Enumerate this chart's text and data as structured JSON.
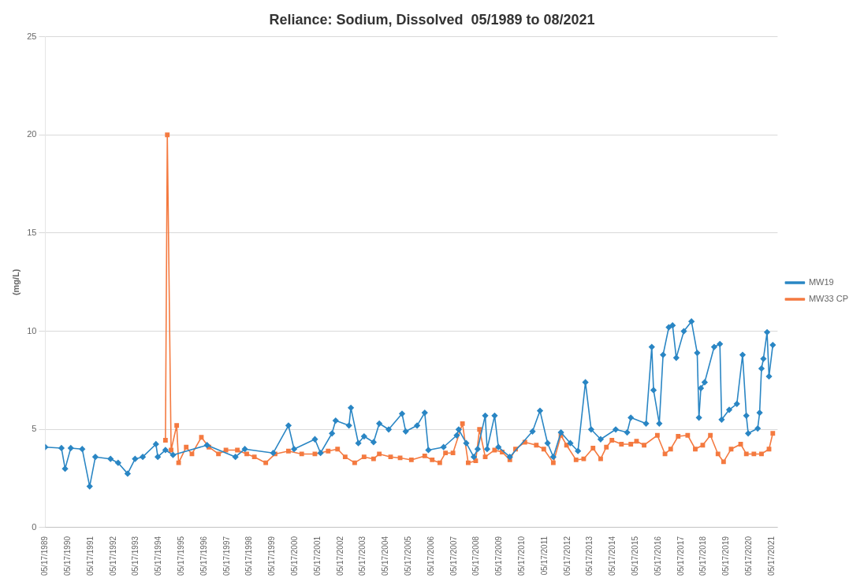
{
  "chart_data": {
    "type": "line",
    "title": "Reliance: Sodium, Dissolved  05/1989 to 08/2021",
    "ylabel": "(mg/L)",
    "xlim": [
      "1989-05-17",
      "2021-08-17"
    ],
    "ylim": [
      0,
      25
    ],
    "yticks": [
      0,
      5,
      10,
      15,
      20,
      25
    ],
    "xticks": [
      {
        "value": "1989-05-17",
        "label": "05/17/1989"
      },
      {
        "value": "1990-05-17",
        "label": "05/17/1990"
      },
      {
        "value": "1991-05-17",
        "label": "05/17/1991"
      },
      {
        "value": "1992-05-17",
        "label": "05/17/1992"
      },
      {
        "value": "1993-05-17",
        "label": "05/17/1993"
      },
      {
        "value": "1994-05-17",
        "label": "05/17/1994"
      },
      {
        "value": "1995-05-17",
        "label": "05/17/1995"
      },
      {
        "value": "1996-05-17",
        "label": "05/17/1996"
      },
      {
        "value": "1997-05-17",
        "label": "05/17/1997"
      },
      {
        "value": "1998-05-17",
        "label": "05/17/1998"
      },
      {
        "value": "1999-05-17",
        "label": "05/17/1999"
      },
      {
        "value": "2000-05-17",
        "label": "05/17/2000"
      },
      {
        "value": "2001-05-17",
        "label": "05/17/2001"
      },
      {
        "value": "2002-05-17",
        "label": "05/17/2002"
      },
      {
        "value": "2003-05-17",
        "label": "05/17/2003"
      },
      {
        "value": "2004-05-17",
        "label": "05/17/2004"
      },
      {
        "value": "2005-05-17",
        "label": "05/17/2005"
      },
      {
        "value": "2006-05-17",
        "label": "05/17/2006"
      },
      {
        "value": "2007-05-17",
        "label": "05/17/2007"
      },
      {
        "value": "2008-05-17",
        "label": "05/17/2008"
      },
      {
        "value": "2009-05-17",
        "label": "05/17/2009"
      },
      {
        "value": "2010-05-17",
        "label": "05/17/2010"
      },
      {
        "value": "2011-05-17",
        "label": "05/17/2011"
      },
      {
        "value": "2012-05-17",
        "label": "05/17/2012"
      },
      {
        "value": "2013-05-17",
        "label": "05/17/2013"
      },
      {
        "value": "2014-05-17",
        "label": "05/17/2014"
      },
      {
        "value": "2015-05-17",
        "label": "05/17/2015"
      },
      {
        "value": "2016-05-17",
        "label": "05/17/2016"
      },
      {
        "value": "2017-05-17",
        "label": "05/17/2017"
      },
      {
        "value": "2018-05-17",
        "label": "05/17/2018"
      },
      {
        "value": "2019-05-17",
        "label": "05/17/2019"
      },
      {
        "value": "2020-05-17",
        "label": "05/17/2020"
      },
      {
        "value": "2021-05-17",
        "label": "05/17/2021"
      }
    ],
    "grid": "y",
    "legend": "right",
    "line_style": "solid",
    "series": [
      {
        "name": "MW19",
        "color": "#2a86c4",
        "marker": "diamond",
        "x": [
          "1989-05-17",
          "1990-02",
          "1990-04",
          "1990-07",
          "1991-01",
          "1991-05",
          "1991-08",
          "1992-04",
          "1992-08",
          "1993-01",
          "1993-05",
          "1993-09",
          "1994-04",
          "1994-05",
          "1994-09",
          "1995-01",
          "1996-07",
          "1997-10",
          "1998-03",
          "1999-06",
          "2000-02",
          "2000-05",
          "2001-04",
          "2001-07",
          "2002-01",
          "2002-03",
          "2002-10",
          "2002-11",
          "2003-03",
          "2003-06",
          "2003-11",
          "2004-02",
          "2004-07",
          "2005-02",
          "2005-04",
          "2005-10",
          "2006-02",
          "2006-04",
          "2006-12",
          "2007-07",
          "2007-08",
          "2007-12",
          "2008-04",
          "2008-06",
          "2008-10",
          "2008-11",
          "2009-03",
          "2009-05",
          "2009-11",
          "2010-11",
          "2011-03",
          "2011-07",
          "2011-10",
          "2012-02",
          "2012-07",
          "2012-11",
          "2013-03",
          "2013-06",
          "2013-11",
          "2014-07",
          "2015-01",
          "2015-03",
          "2015-11",
          "2016-02",
          "2016-03",
          "2016-06",
          "2016-08",
          "2016-11",
          "2017-01",
          "2017-03",
          "2017-07",
          "2017-11",
          "2018-02",
          "2018-03",
          "2018-04",
          "2018-06",
          "2018-11",
          "2019-02",
          "2019-03",
          "2019-07",
          "2019-11",
          "2020-02",
          "2020-04",
          "2020-05",
          "2020-10",
          "2020-11",
          "2020-12",
          "2021-01",
          "2021-03",
          "2021-04",
          "2021-06"
        ],
        "values": [
          4.1,
          4.05,
          3.0,
          4.05,
          4.0,
          2.1,
          3.6,
          3.5,
          3.3,
          2.75,
          3.5,
          3.6,
          4.25,
          3.6,
          3.95,
          3.7,
          4.2,
          3.6,
          4.0,
          3.8,
          5.2,
          4.0,
          4.5,
          3.8,
          4.8,
          5.45,
          5.2,
          6.1,
          4.3,
          4.65,
          4.35,
          5.3,
          5.0,
          5.8,
          4.9,
          5.2,
          5.85,
          3.95,
          4.1,
          4.7,
          5.0,
          4.3,
          3.6,
          4.0,
          5.7,
          4.0,
          5.7,
          4.1,
          3.6,
          4.9,
          5.95,
          4.3,
          3.6,
          4.85,
          4.3,
          3.9,
          7.4,
          5.0,
          4.5,
          5.0,
          4.85,
          5.6,
          5.3,
          9.2,
          7.0,
          5.3,
          8.8,
          10.2,
          10.3,
          8.65,
          10.0,
          10.5,
          8.9,
          5.6,
          7.1,
          7.4,
          9.2,
          9.35,
          5.5,
          6.0,
          6.3,
          8.8,
          5.7,
          4.8,
          5.05,
          5.85,
          8.1,
          8.6,
          9.95,
          7.7,
          9.3
        ]
      },
      {
        "name": "MW33 CP",
        "color": "#f47a40",
        "marker": "square",
        "x": [
          "1994-09",
          "1994-10",
          "1994-12",
          "1995-03",
          "1995-04",
          "1995-08",
          "1995-11",
          "1996-04",
          "1996-08",
          "1997-01",
          "1997-05",
          "1997-11",
          "1998-04",
          "1998-08",
          "1999-02",
          "1999-07",
          "2000-02",
          "2000-09",
          "2001-04",
          "2001-11",
          "2002-04",
          "2002-08",
          "2003-01",
          "2003-06",
          "2003-11",
          "2004-02",
          "2004-08",
          "2005-01",
          "2005-07",
          "2006-02",
          "2006-06",
          "2006-10",
          "2007-01",
          "2007-05",
          "2007-10",
          "2008-01",
          "2008-05",
          "2008-07",
          "2008-10",
          "2009-03",
          "2009-07",
          "2009-11",
          "2010-02",
          "2010-07",
          "2011-01",
          "2011-05",
          "2011-10",
          "2012-02",
          "2012-05",
          "2012-10",
          "2013-02",
          "2013-07",
          "2013-11",
          "2014-02",
          "2014-05",
          "2014-10",
          "2015-03",
          "2015-06",
          "2015-10",
          "2016-05",
          "2016-09",
          "2016-12",
          "2017-04",
          "2017-09",
          "2018-01",
          "2018-05",
          "2018-09",
          "2019-01",
          "2019-04",
          "2019-08",
          "2020-01",
          "2020-04",
          "2020-08",
          "2020-12",
          "2021-04",
          "2021-06"
        ],
        "values": [
          4.45,
          20,
          3.95,
          5.2,
          3.3,
          4.1,
          3.75,
          4.6,
          4.1,
          3.75,
          3.95,
          3.95,
          3.75,
          3.6,
          3.3,
          3.75,
          3.9,
          3.75,
          3.75,
          3.9,
          4.0,
          3.6,
          3.3,
          3.6,
          3.5,
          3.75,
          3.6,
          3.55,
          3.45,
          3.65,
          3.45,
          3.3,
          3.8,
          3.8,
          5.3,
          3.3,
          3.4,
          5.0,
          3.6,
          3.95,
          3.85,
          3.45,
          4.0,
          4.35,
          4.2,
          4.0,
          3.3,
          4.7,
          4.2,
          3.45,
          3.5,
          4.05,
          3.5,
          4.1,
          4.45,
          4.25,
          4.25,
          4.4,
          4.2,
          4.7,
          3.75,
          4.0,
          4.65,
          4.7,
          4.0,
          4.2,
          4.7,
          3.75,
          3.35,
          4.0,
          4.25,
          3.75,
          3.75,
          3.75,
          4.0,
          4.8
        ]
      }
    ]
  }
}
